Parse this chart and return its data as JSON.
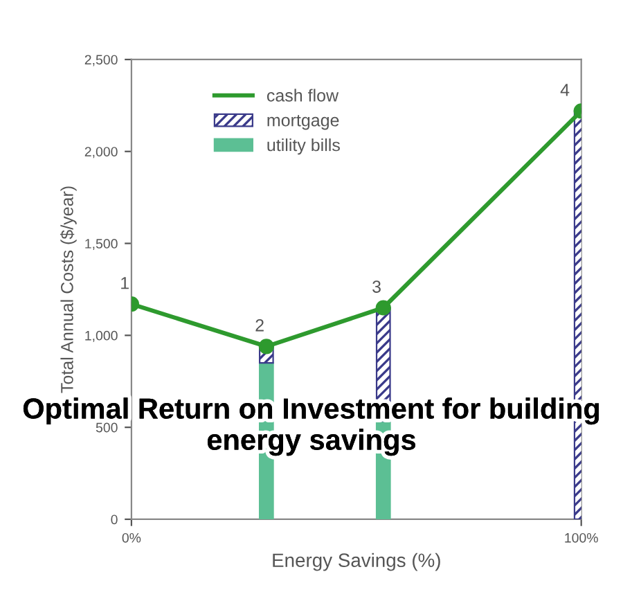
{
  "chart_data": {
    "type": "bar",
    "title": "Optimal Return on Investment for building energy savings",
    "xlabel": "Energy Savings (%)",
    "ylabel": "Total Annual Costs ($/year)",
    "stacked": true,
    "x": [
      30,
      56,
      100
    ],
    "series": [
      {
        "name": "cash flow",
        "type": "line",
        "color": "#2e9a2e",
        "x": [
          0,
          30,
          56,
          100
        ],
        "values": [
          1170,
          940,
          1150,
          2220
        ]
      },
      {
        "name": "utility bills",
        "color": "#5cbf94",
        "values": [
          850,
          534,
          null
        ]
      },
      {
        "name": "mortgage",
        "color": "#3a3a8a",
        "values": [
          90,
          616,
          2220
        ]
      }
    ],
    "annotations": [
      {
        "text": "1",
        "x": 0,
        "y": 1170
      },
      {
        "text": "2",
        "x": 30,
        "y": 940
      },
      {
        "text": "3",
        "x": 56,
        "y": 1150
      },
      {
        "text": "4",
        "x": 100,
        "y": 2220
      }
    ],
    "xlim": [
      0,
      100
    ],
    "xticks": [
      {
        "value": 0,
        "label": "0%"
      },
      {
        "value": 100,
        "label": "100%"
      }
    ],
    "ylim": [
      0,
      2500
    ],
    "yticks": [
      0,
      500,
      {
        "value": 1000,
        "label": "1,000"
      },
      {
        "value": 1500,
        "label": "1,500"
      },
      {
        "value": 2000,
        "label": "2,000"
      },
      {
        "value": 2500,
        "label": "2,500"
      }
    ],
    "legend": "top left",
    "marker": "circle",
    "grid": false
  }
}
